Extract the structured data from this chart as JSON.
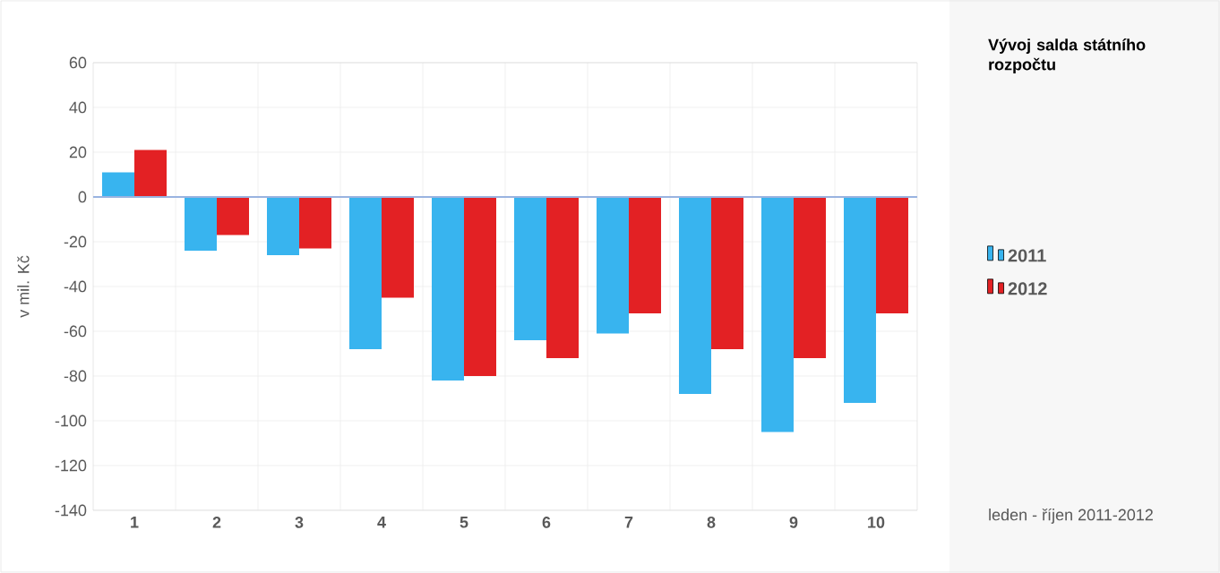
{
  "chart_data": {
    "type": "bar",
    "title": "Vývoj salda státního rozpočtu",
    "ylabel": "v mil. Kč",
    "categories": [
      "1",
      "2",
      "3",
      "4",
      "5",
      "6",
      "7",
      "8",
      "9",
      "10"
    ],
    "series": [
      {
        "name": "2011",
        "color": "#38b4ef",
        "values": [
          11,
          -24,
          -26,
          -68,
          -82,
          -64,
          -61,
          -88,
          -105,
          -92
        ]
      },
      {
        "name": "2012",
        "color": "#e32124",
        "values": [
          21,
          -17,
          -23,
          -45,
          -80,
          -72,
          -52,
          -68,
          -72,
          -52
        ]
      }
    ],
    "ylim": [
      -140,
      60
    ],
    "yticks": [
      -140,
      -120,
      -100,
      -80,
      -60,
      -40,
      -20,
      0,
      20,
      40,
      60
    ],
    "ref_lines": [
      {
        "axis": "y",
        "value": 0,
        "color": "#99b3e0"
      }
    ],
    "grid": true,
    "legend": "right",
    "annotations": [
      "leden - říjen 2011-2012"
    ]
  }
}
